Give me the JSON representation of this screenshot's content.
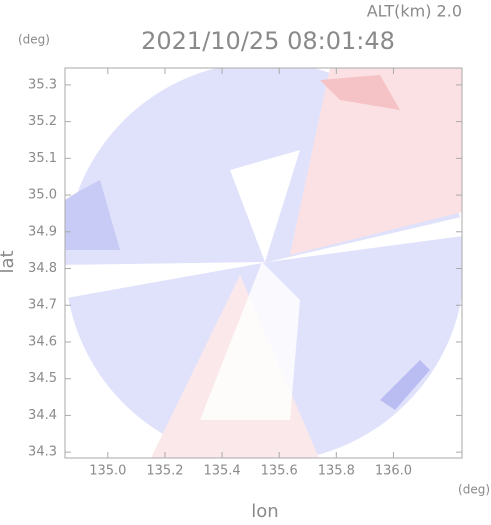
{
  "chart_data": {
    "type": "radar-image",
    "altitude_label": "ALT(km) 2.0",
    "title": "2021/10/25 08:01:48",
    "y_unit": "(deg)",
    "x_unit": "(deg)",
    "xlabel": "lon",
    "ylabel": "lat",
    "xlim": [
      134.85,
      136.24
    ],
    "ylim": [
      34.284,
      35.346
    ],
    "xticks": [
      {
        "value": 135,
        "label": "135.0"
      },
      135.2,
      135.4,
      135.6,
      135.8,
      {
        "value": 136,
        "label": "136.0"
      }
    ],
    "yticks": [
      {
        "value": 34.3,
        "label": "34.3"
      },
      34.4,
      34.5,
      34.6,
      34.7,
      34.8,
      34.9,
      {
        "value": 35,
        "label": "35.0"
      },
      35.1,
      35.2,
      35.3
    ]
  }
}
